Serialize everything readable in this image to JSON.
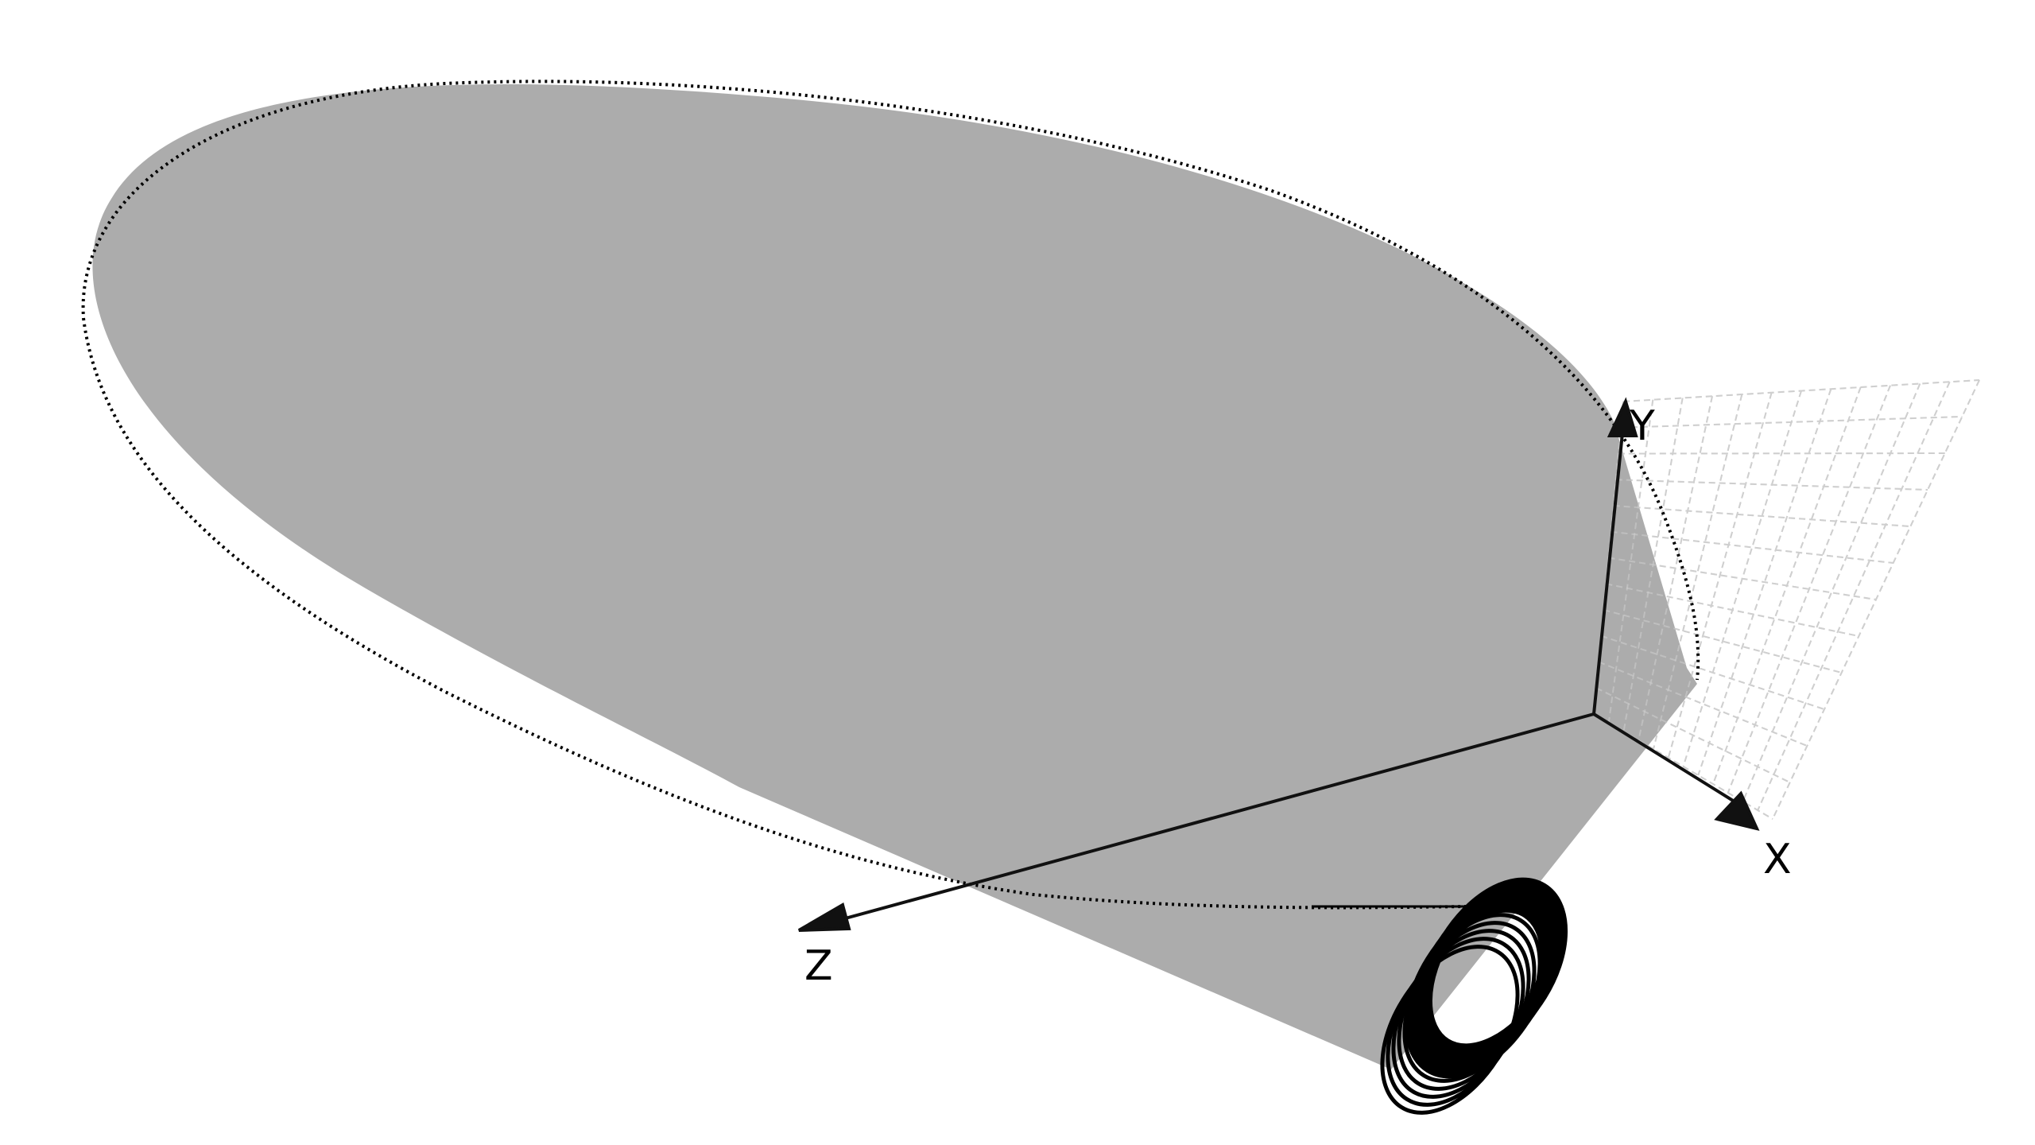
{
  "axes": {
    "x_label": "X",
    "y_label": "Y",
    "z_label": "Z"
  },
  "colors": {
    "surface": "#acacac",
    "axis": "#111111",
    "grid": "#cfcfcf",
    "curve": "#000000",
    "background": "#ffffff"
  }
}
